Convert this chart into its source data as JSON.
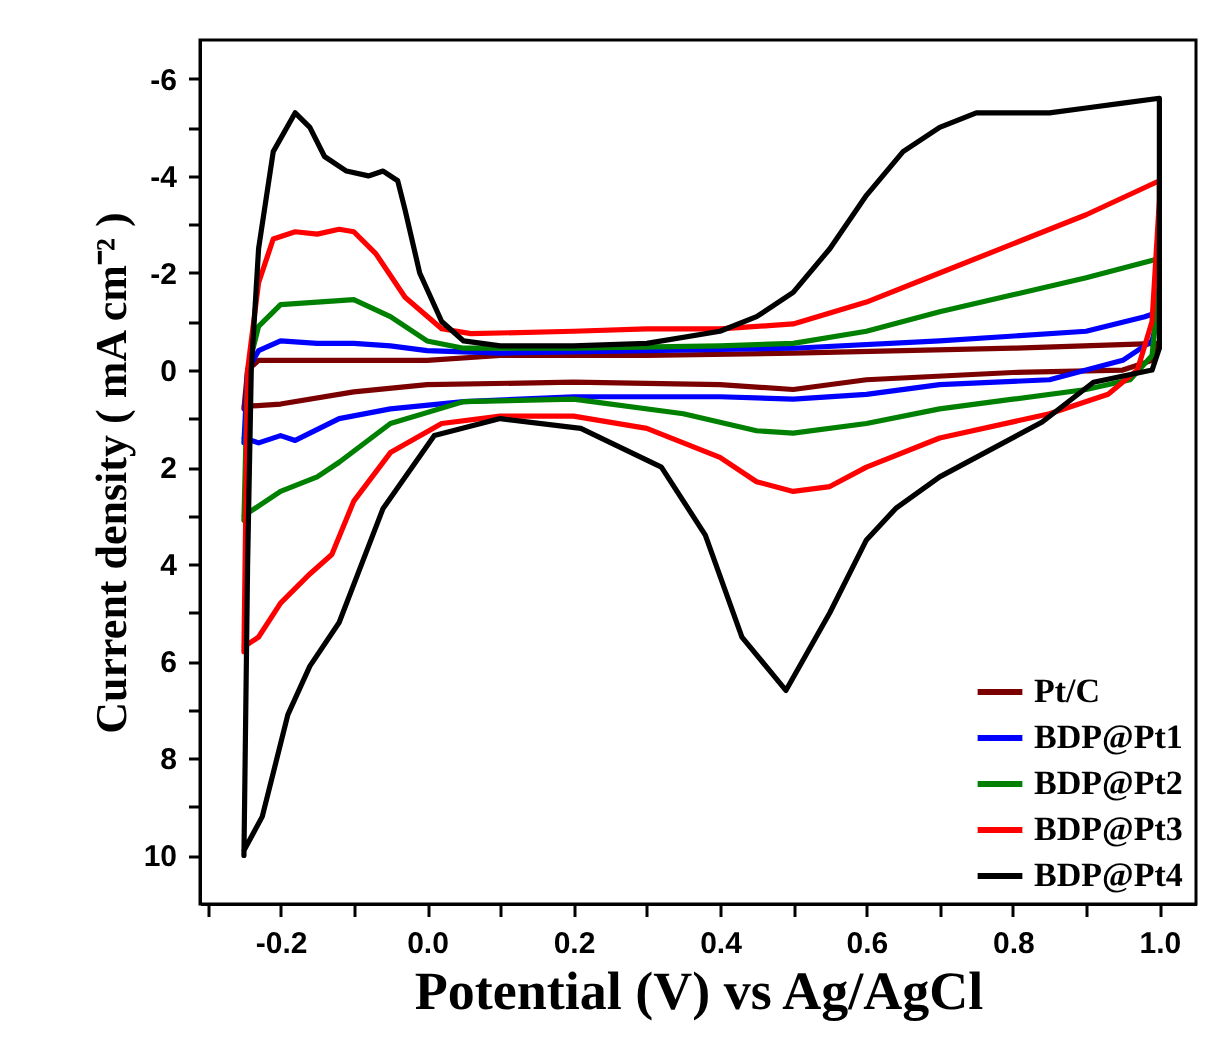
{
  "chart_data": {
    "type": "line",
    "xlabel": "Potential (V) vs Ag/AgCl",
    "ylabel": "Current density ( mA cm⁻² )",
    "xlim": [
      -0.31,
      1.05
    ],
    "ylim": [
      11,
      -6.8
    ],
    "xticks": [
      {
        "value": -0.3,
        "label": null
      },
      {
        "value": -0.2,
        "label": "-0.2"
      },
      {
        "value": -0.1,
        "label": null
      },
      {
        "value": 0,
        "label": "0.0"
      },
      {
        "value": 0.1,
        "label": null
      },
      {
        "value": 0.2,
        "label": "0.2"
      },
      {
        "value": 0.3,
        "label": null
      },
      {
        "value": 0.4,
        "label": "0.4"
      },
      {
        "value": 0.5,
        "label": null
      },
      {
        "value": 0.6,
        "label": "0.6"
      },
      {
        "value": 0.7,
        "label": null
      },
      {
        "value": 0.8,
        "label": "0.8"
      },
      {
        "value": 0.9,
        "label": null
      },
      {
        "value": 1,
        "label": "1.0"
      }
    ],
    "yticks": [
      -6,
      {
        "value": -5,
        "label": null
      },
      -4,
      {
        "value": -3,
        "label": null
      },
      -2,
      {
        "value": -1,
        "label": null
      },
      0,
      {
        "value": 1,
        "label": null
      },
      2,
      {
        "value": 3,
        "label": null
      },
      4,
      {
        "value": 5,
        "label": null
      },
      6,
      {
        "value": 7,
        "label": null
      },
      8,
      {
        "value": 9,
        "label": null
      },
      10
    ],
    "grid": false,
    "legend": "bottom right",
    "marker": "none",
    "line_style": "solid",
    "series": [
      {
        "name": "Pt/C",
        "color": "#7b0000",
        "x": [
          -0.25,
          -0.245,
          -0.23,
          -0.15,
          0.0,
          0.1,
          0.3,
          0.5,
          0.8,
          1.0,
          0.99,
          0.95,
          0.8,
          0.6,
          0.5,
          0.4,
          0.2,
          0.0,
          -0.1,
          -0.2,
          -0.25
        ],
        "values": [
          0.8,
          0,
          -0.2,
          -0.2,
          -0.2,
          -0.3,
          -0.3,
          -0.35,
          -0.45,
          -0.55,
          -0.2,
          0.0,
          0.05,
          0.2,
          0.4,
          0.3,
          0.25,
          0.3,
          0.45,
          0.7,
          0.75
        ]
      },
      {
        "name": "BDP@Pt1",
        "color": "#0000ff",
        "x": [
          -0.25,
          -0.245,
          -0.23,
          -0.2,
          -0.15,
          -0.1,
          -0.05,
          0.0,
          0.1,
          0.3,
          0.5,
          0.7,
          0.9,
          0.98,
          1.0,
          0.99,
          0.95,
          0.85,
          0.7,
          0.6,
          0.5,
          0.4,
          0.2,
          0.05,
          -0.05,
          -0.12,
          -0.18,
          -0.2,
          -0.23,
          -0.25
        ],
        "values": [
          1.5,
          0,
          -0.4,
          -0.6,
          -0.55,
          -0.55,
          -0.5,
          -0.4,
          -0.35,
          -0.4,
          -0.45,
          -0.6,
          -0.8,
          -1.1,
          -1.2,
          -0.6,
          -0.2,
          0.2,
          0.3,
          0.5,
          0.6,
          0.55,
          0.55,
          0.65,
          0.8,
          1.0,
          1.45,
          1.35,
          1.5,
          1.4
        ]
      },
      {
        "name": "BDP@Pt2",
        "color": "#008000",
        "x": [
          -0.25,
          -0.245,
          -0.23,
          -0.2,
          -0.15,
          -0.1,
          -0.05,
          0.0,
          0.05,
          0.2,
          0.4,
          0.5,
          0.6,
          0.7,
          0.8,
          0.9,
          1.0,
          1.0,
          0.99,
          0.96,
          0.9,
          0.8,
          0.7,
          0.6,
          0.5,
          0.45,
          0.35,
          0.2,
          0.05,
          -0.05,
          -0.12,
          -0.15,
          -0.2,
          -0.25
        ],
        "values": [
          3.1,
          0,
          -0.9,
          -1.35,
          -1.4,
          -1.45,
          -1.1,
          -0.6,
          -0.45,
          -0.45,
          -0.5,
          -0.55,
          -0.8,
          -1.2,
          -1.55,
          -1.9,
          -2.3,
          -1.8,
          -0.3,
          0.2,
          0.4,
          0.6,
          0.8,
          1.1,
          1.3,
          1.25,
          0.9,
          0.6,
          0.65,
          1.1,
          1.9,
          2.2,
          2.5,
          3.0
        ]
      },
      {
        "name": "BDP@Pt3",
        "color": "#ff0000",
        "x": [
          -0.25,
          -0.245,
          -0.23,
          -0.21,
          -0.18,
          -0.15,
          -0.12,
          -0.1,
          -0.07,
          -0.03,
          0.02,
          0.06,
          0.2,
          0.3,
          0.4,
          0.5,
          0.6,
          0.7,
          0.8,
          0.9,
          1.0,
          1.0,
          0.99,
          0.97,
          0.93,
          0.85,
          0.7,
          0.6,
          0.55,
          0.5,
          0.45,
          0.4,
          0.3,
          0.2,
          0.1,
          0.02,
          -0.05,
          -0.1,
          -0.13,
          -0.16,
          -0.2,
          -0.23,
          -0.25
        ],
        "values": [
          5.8,
          0,
          -1.8,
          -2.7,
          -2.85,
          -2.8,
          -2.9,
          -2.85,
          -2.4,
          -1.5,
          -0.85,
          -0.75,
          -0.8,
          -0.85,
          -0.85,
          -0.95,
          -1.4,
          -2.0,
          -2.6,
          -3.2,
          -3.9,
          -3.5,
          -1.0,
          0.0,
          0.5,
          0.9,
          1.4,
          2.0,
          2.4,
          2.5,
          2.3,
          1.8,
          1.2,
          0.95,
          0.95,
          1.1,
          1.7,
          2.7,
          3.8,
          4.2,
          4.8,
          5.5,
          5.7
        ]
      },
      {
        "name": "BDP@Pt4",
        "color": "#000000",
        "x": [
          -0.25,
          -0.245,
          -0.24,
          -0.23,
          -0.21,
          -0.18,
          -0.16,
          -0.14,
          -0.11,
          -0.08,
          -0.06,
          -0.04,
          -0.03,
          -0.01,
          0.02,
          0.05,
          0.1,
          0.2,
          0.3,
          0.4,
          0.45,
          0.5,
          0.55,
          0.6,
          0.65,
          0.7,
          0.75,
          0.8,
          0.85,
          0.9,
          0.95,
          1.0,
          1.0,
          0.99,
          0.91,
          0.84,
          0.7,
          0.64,
          0.6,
          0.55,
          0.49,
          0.43,
          0.38,
          0.32,
          0.21,
          0.1,
          0.01,
          -0.06,
          -0.12,
          -0.16,
          -0.19,
          -0.225,
          -0.25
        ],
        "values": [
          10,
          4,
          0,
          -2.5,
          -4.5,
          -5.3,
          -5.0,
          -4.4,
          -4.1,
          -4.0,
          -4.1,
          -3.9,
          -3.3,
          -2.0,
          -1.0,
          -0.6,
          -0.5,
          -0.5,
          -0.55,
          -0.8,
          -1.1,
          -1.6,
          -2.5,
          -3.6,
          -4.5,
          -5.0,
          -5.3,
          -5.3,
          -5.3,
          -5.4,
          -5.5,
          -5.6,
          -0.45,
          0.0,
          0.25,
          1.07,
          2.2,
          2.85,
          3.5,
          5.0,
          6.6,
          5.5,
          3.4,
          2.0,
          1.2,
          1.0,
          1.35,
          2.85,
          5.2,
          6.1,
          7.1,
          9.2,
          9.9
        ]
      }
    ]
  }
}
